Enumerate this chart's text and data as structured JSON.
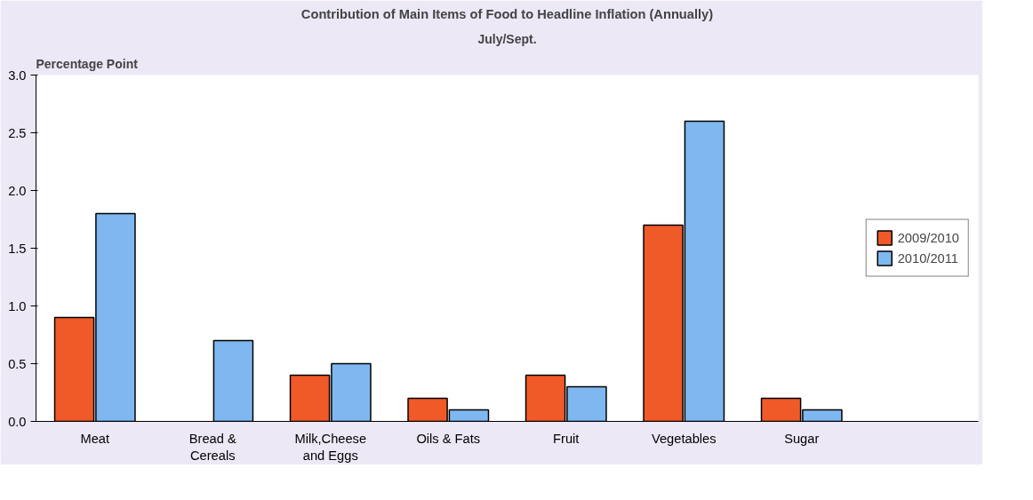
{
  "chart_data": {
    "type": "bar",
    "title": "Contribution of Main Items of Food to Headline Inflation (Annually)",
    "subtitle": "July/Sept.",
    "ylabel": "Percentage Point",
    "categories": [
      "Meat",
      "Bread & Cereals",
      "Milk,Cheese and Eggs",
      "Oils & Fats",
      "Fruit",
      "Vegetables",
      "Sugar"
    ],
    "series": [
      {
        "name": "2009/2010",
        "color": "#f05a28",
        "values": [
          0.9,
          null,
          0.4,
          0.2,
          0.4,
          1.7,
          0.2
        ]
      },
      {
        "name": "2010/2011",
        "color": "#7fb8f0",
        "values": [
          1.8,
          0.7,
          0.5,
          0.1,
          0.3,
          2.6,
          0.1
        ]
      }
    ],
    "ylim": [
      0,
      3
    ],
    "yticks": [
      {
        "value": 0,
        "label": "0.0"
      },
      {
        "value": 0.5,
        "label": "0.5"
      },
      {
        "value": 1,
        "label": "1.0"
      },
      {
        "value": 1.5,
        "label": "1.5"
      },
      {
        "value": 2,
        "label": "2.0"
      },
      {
        "value": 2.5,
        "label": "2.5"
      },
      {
        "value": 3,
        "label": "3.0"
      }
    ],
    "grid": false,
    "legend": "right"
  }
}
